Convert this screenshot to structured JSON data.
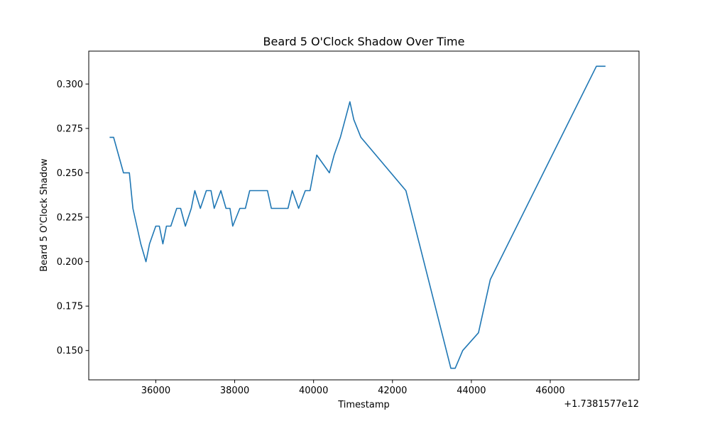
{
  "chart_data": {
    "type": "line",
    "title": "Beard 5 O'Clock Shadow Over Time",
    "xlabel": "Timestamp",
    "ylabel": "Beard 5 O'Clock Shadow",
    "x_offset_label": "+1.7381577e12",
    "xlim": [
      34300,
      48250
    ],
    "ylim": [
      0.1335,
      0.3185
    ],
    "x_ticks": [
      36000,
      38000,
      40000,
      42000,
      44000,
      46000
    ],
    "x_tick_labels": [
      "36000",
      "38000",
      "40000",
      "42000",
      "44000",
      "46000"
    ],
    "y_ticks": [
      0.15,
      0.175,
      0.2,
      0.225,
      0.25,
      0.275,
      0.3
    ],
    "y_tick_labels": [
      "0.150",
      "0.175",
      "0.200",
      "0.225",
      "0.250",
      "0.275",
      "0.300"
    ],
    "grid": false,
    "series": [
      {
        "color": "#1f77b4",
        "x": [
          34830,
          34930,
          35180,
          35330,
          35420,
          35620,
          35750,
          35840,
          36000,
          36090,
          36180,
          36270,
          36380,
          36530,
          36630,
          36750,
          36900,
          36990,
          37130,
          37280,
          37400,
          37480,
          37650,
          37780,
          37880,
          37950,
          38130,
          38270,
          38380,
          38830,
          38930,
          39200,
          39350,
          39460,
          39620,
          39790,
          39910,
          40080,
          40400,
          40520,
          40680,
          40920,
          41020,
          41200,
          42340,
          43480,
          43590,
          43780,
          44180,
          44480,
          47170,
          47400
        ],
        "values": [
          0.27,
          0.27,
          0.25,
          0.25,
          0.23,
          0.21,
          0.2,
          0.21,
          0.22,
          0.22,
          0.21,
          0.22,
          0.22,
          0.23,
          0.23,
          0.22,
          0.23,
          0.24,
          0.23,
          0.24,
          0.24,
          0.23,
          0.24,
          0.23,
          0.23,
          0.22,
          0.23,
          0.23,
          0.24,
          0.24,
          0.23,
          0.23,
          0.23,
          0.24,
          0.23,
          0.24,
          0.24,
          0.26,
          0.25,
          0.26,
          0.27,
          0.29,
          0.28,
          0.27,
          0.24,
          0.14,
          0.14,
          0.15,
          0.16,
          0.19,
          0.31,
          0.31
        ]
      }
    ]
  }
}
